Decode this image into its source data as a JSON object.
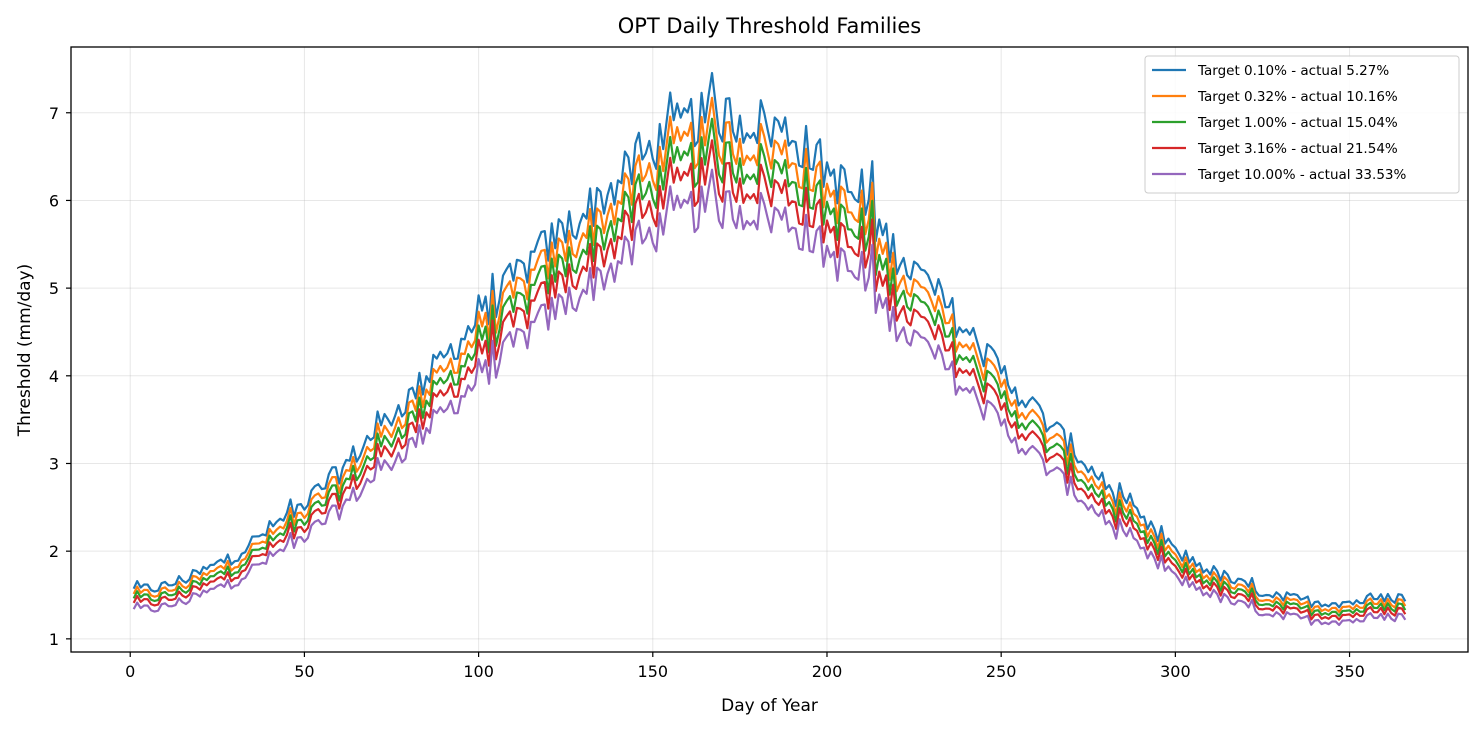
{
  "chart_data": {
    "type": "line",
    "title": "OPT Daily Threshold Families",
    "xlabel": "Day of Year",
    "ylabel": "Threshold (mm/day)",
    "xlim": [
      -17,
      384
    ],
    "ylim": [
      0.85,
      7.75
    ],
    "xticks": [
      0,
      50,
      100,
      150,
      200,
      250,
      300,
      350
    ],
    "yticks": [
      1,
      2,
      3,
      4,
      5,
      6,
      7
    ],
    "grid": true,
    "legend_position": "top-right",
    "baseline_envelope": {
      "x": [
        1,
        10,
        20,
        30,
        40,
        50,
        60,
        70,
        80,
        90,
        100,
        110,
        120,
        130,
        140,
        150,
        160,
        170,
        180,
        190,
        200,
        210,
        220,
        230,
        240,
        250,
        260,
        270,
        280,
        290,
        300,
        310,
        320,
        330,
        340,
        350,
        366
      ],
      "y": [
        1.55,
        1.6,
        1.75,
        1.95,
        2.25,
        2.55,
        2.9,
        3.35,
        3.75,
        4.2,
        4.65,
        5.1,
        5.5,
        5.85,
        6.2,
        6.6,
        6.9,
        6.95,
        6.9,
        6.75,
        6.35,
        5.95,
        5.4,
        5.0,
        4.5,
        4.05,
        3.6,
        3.2,
        2.75,
        2.35,
        2.0,
        1.78,
        1.6,
        1.48,
        1.42,
        1.42,
        1.48
      ]
    },
    "series": [
      {
        "name": "Target 0.10% - actual 5.27%",
        "color": "#1f77b4",
        "scale": 1.0
      },
      {
        "name": "Target 0.32% - actual 10.16%",
        "color": "#ff7f0e",
        "scale": 0.962
      },
      {
        "name": "Target 1.00% - actual 15.04%",
        "color": "#2ca02c",
        "scale": 0.93
      },
      {
        "name": "Target 3.16% - actual 21.54%",
        "color": "#d62728",
        "scale": 0.897
      },
      {
        "name": "Target 10.00% - actual 33.53%",
        "color": "#9467bd",
        "scale": 0.852
      }
    ]
  }
}
